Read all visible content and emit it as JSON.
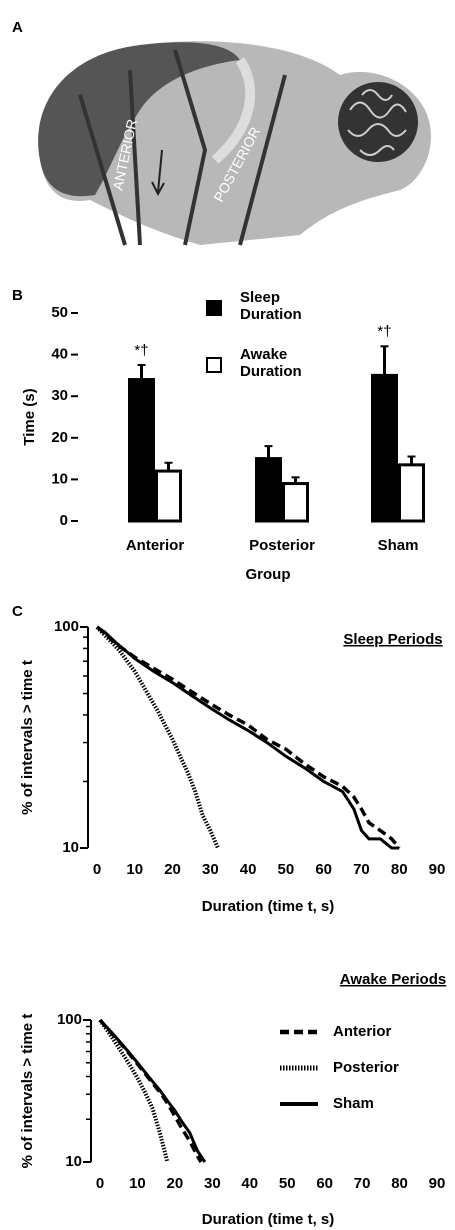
{
  "figure_image": {
    "panel_label": "A",
    "labels": [
      "ANTERIOR",
      "POSTERIOR"
    ]
  },
  "chart_data": [
    {
      "type": "bar",
      "panel_label": "B",
      "ylabel": "Time (s)",
      "xlabel": "Group",
      "categories": [
        "Anterior",
        "Posterior",
        "Sham"
      ],
      "annotations": [
        "*†",
        null,
        "*†"
      ],
      "series": [
        {
          "name": "Sleep Duration",
          "color": "#000000",
          "values": [
            34,
            15,
            35
          ],
          "errors": [
            3.5,
            3,
            7
          ]
        },
        {
          "name": "Awake Duration",
          "color": "#ffffff",
          "values": [
            12,
            9,
            13.5
          ],
          "errors": [
            2,
            1.5,
            2
          ]
        }
      ],
      "ylim": [
        0,
        50
      ],
      "yticks": [
        0,
        10,
        20,
        30,
        40,
        50
      ]
    },
    {
      "type": "line",
      "panel_label": "C",
      "title": "Sleep Periods",
      "ylabel": "% of intervals > time t",
      "xlabel": "Duration (time t, s)",
      "ylog": true,
      "legend": false,
      "xlim": [
        0,
        90
      ],
      "xticks": [
        0,
        10,
        20,
        30,
        40,
        50,
        60,
        70,
        80,
        90
      ],
      "ylim": [
        10,
        100
      ],
      "yticks": [
        10,
        100
      ],
      "yminorticks": [
        20,
        30,
        40,
        50,
        60,
        70,
        80,
        90
      ],
      "series": [
        {
          "color": "#000000",
          "dash": "dashed",
          "x": [
            0,
            2,
            5,
            10,
            15,
            20,
            25,
            30,
            35,
            40,
            45,
            50,
            55,
            60,
            65,
            68,
            70,
            72,
            75,
            78,
            80
          ],
          "values": [
            100,
            94,
            84,
            73,
            65,
            58,
            51,
            45,
            40,
            36,
            31,
            28,
            24,
            21,
            19,
            17,
            15,
            13,
            12,
            11,
            10
          ]
        },
        {
          "color": "#000000",
          "dash": "dotted",
          "x": [
            0,
            2,
            4,
            6,
            8,
            10,
            12,
            14,
            16,
            18,
            20,
            22,
            24,
            26,
            28,
            30,
            32
          ],
          "values": [
            100,
            92,
            85,
            78,
            70,
            63,
            55,
            48,
            42,
            36,
            31,
            26,
            22,
            18,
            14,
            12,
            10
          ]
        },
        {
          "color": "#000000",
          "dash": "solid",
          "x": [
            0,
            2,
            5,
            10,
            15,
            20,
            25,
            30,
            35,
            40,
            45,
            50,
            55,
            60,
            65,
            68,
            70,
            72,
            75,
            78,
            80
          ],
          "values": [
            100,
            95,
            85,
            72,
            63,
            56,
            49,
            43,
            38,
            34,
            30,
            26,
            23,
            20,
            18,
            15,
            12,
            11,
            11,
            10,
            10
          ]
        }
      ]
    },
    {
      "type": "line",
      "title": "Awake Periods",
      "ylabel": "% of intervals > time t",
      "xlabel": "Duration (time t, s)",
      "ylog": true,
      "legend": true,
      "xlim": [
        0,
        90
      ],
      "xticks": [
        0,
        10,
        20,
        30,
        40,
        50,
        60,
        70,
        80,
        90
      ],
      "ylim": [
        10,
        100
      ],
      "yticks": [
        10,
        100
      ],
      "yminorticks": [
        20,
        30,
        40,
        50,
        60,
        70,
        80,
        90
      ],
      "series": [
        {
          "name": "Anterior",
          "color": "#000000",
          "dash": "dashed",
          "x": [
            0,
            2,
            4,
            6,
            8,
            10,
            12,
            14,
            16,
            18,
            20,
            22,
            24,
            26,
            27
          ],
          "values": [
            100,
            87,
            76,
            66,
            57,
            49,
            42,
            36,
            31,
            26,
            21,
            17,
            14,
            11,
            10
          ]
        },
        {
          "name": "Posterior",
          "color": "#000000",
          "dash": "dotted",
          "x": [
            0,
            2,
            4,
            6,
            8,
            10,
            12,
            14,
            16,
            18
          ],
          "values": [
            100,
            84,
            70,
            58,
            48,
            39,
            31,
            24,
            16,
            10
          ]
        },
        {
          "name": "Sham",
          "color": "#000000",
          "dash": "solid",
          "x": [
            0,
            2,
            4,
            6,
            8,
            10,
            12,
            14,
            16,
            18,
            20,
            22,
            24,
            26,
            28
          ],
          "values": [
            100,
            88,
            77,
            67,
            58,
            50,
            43,
            37,
            32,
            27,
            23,
            19,
            16,
            12,
            10
          ]
        }
      ]
    }
  ]
}
